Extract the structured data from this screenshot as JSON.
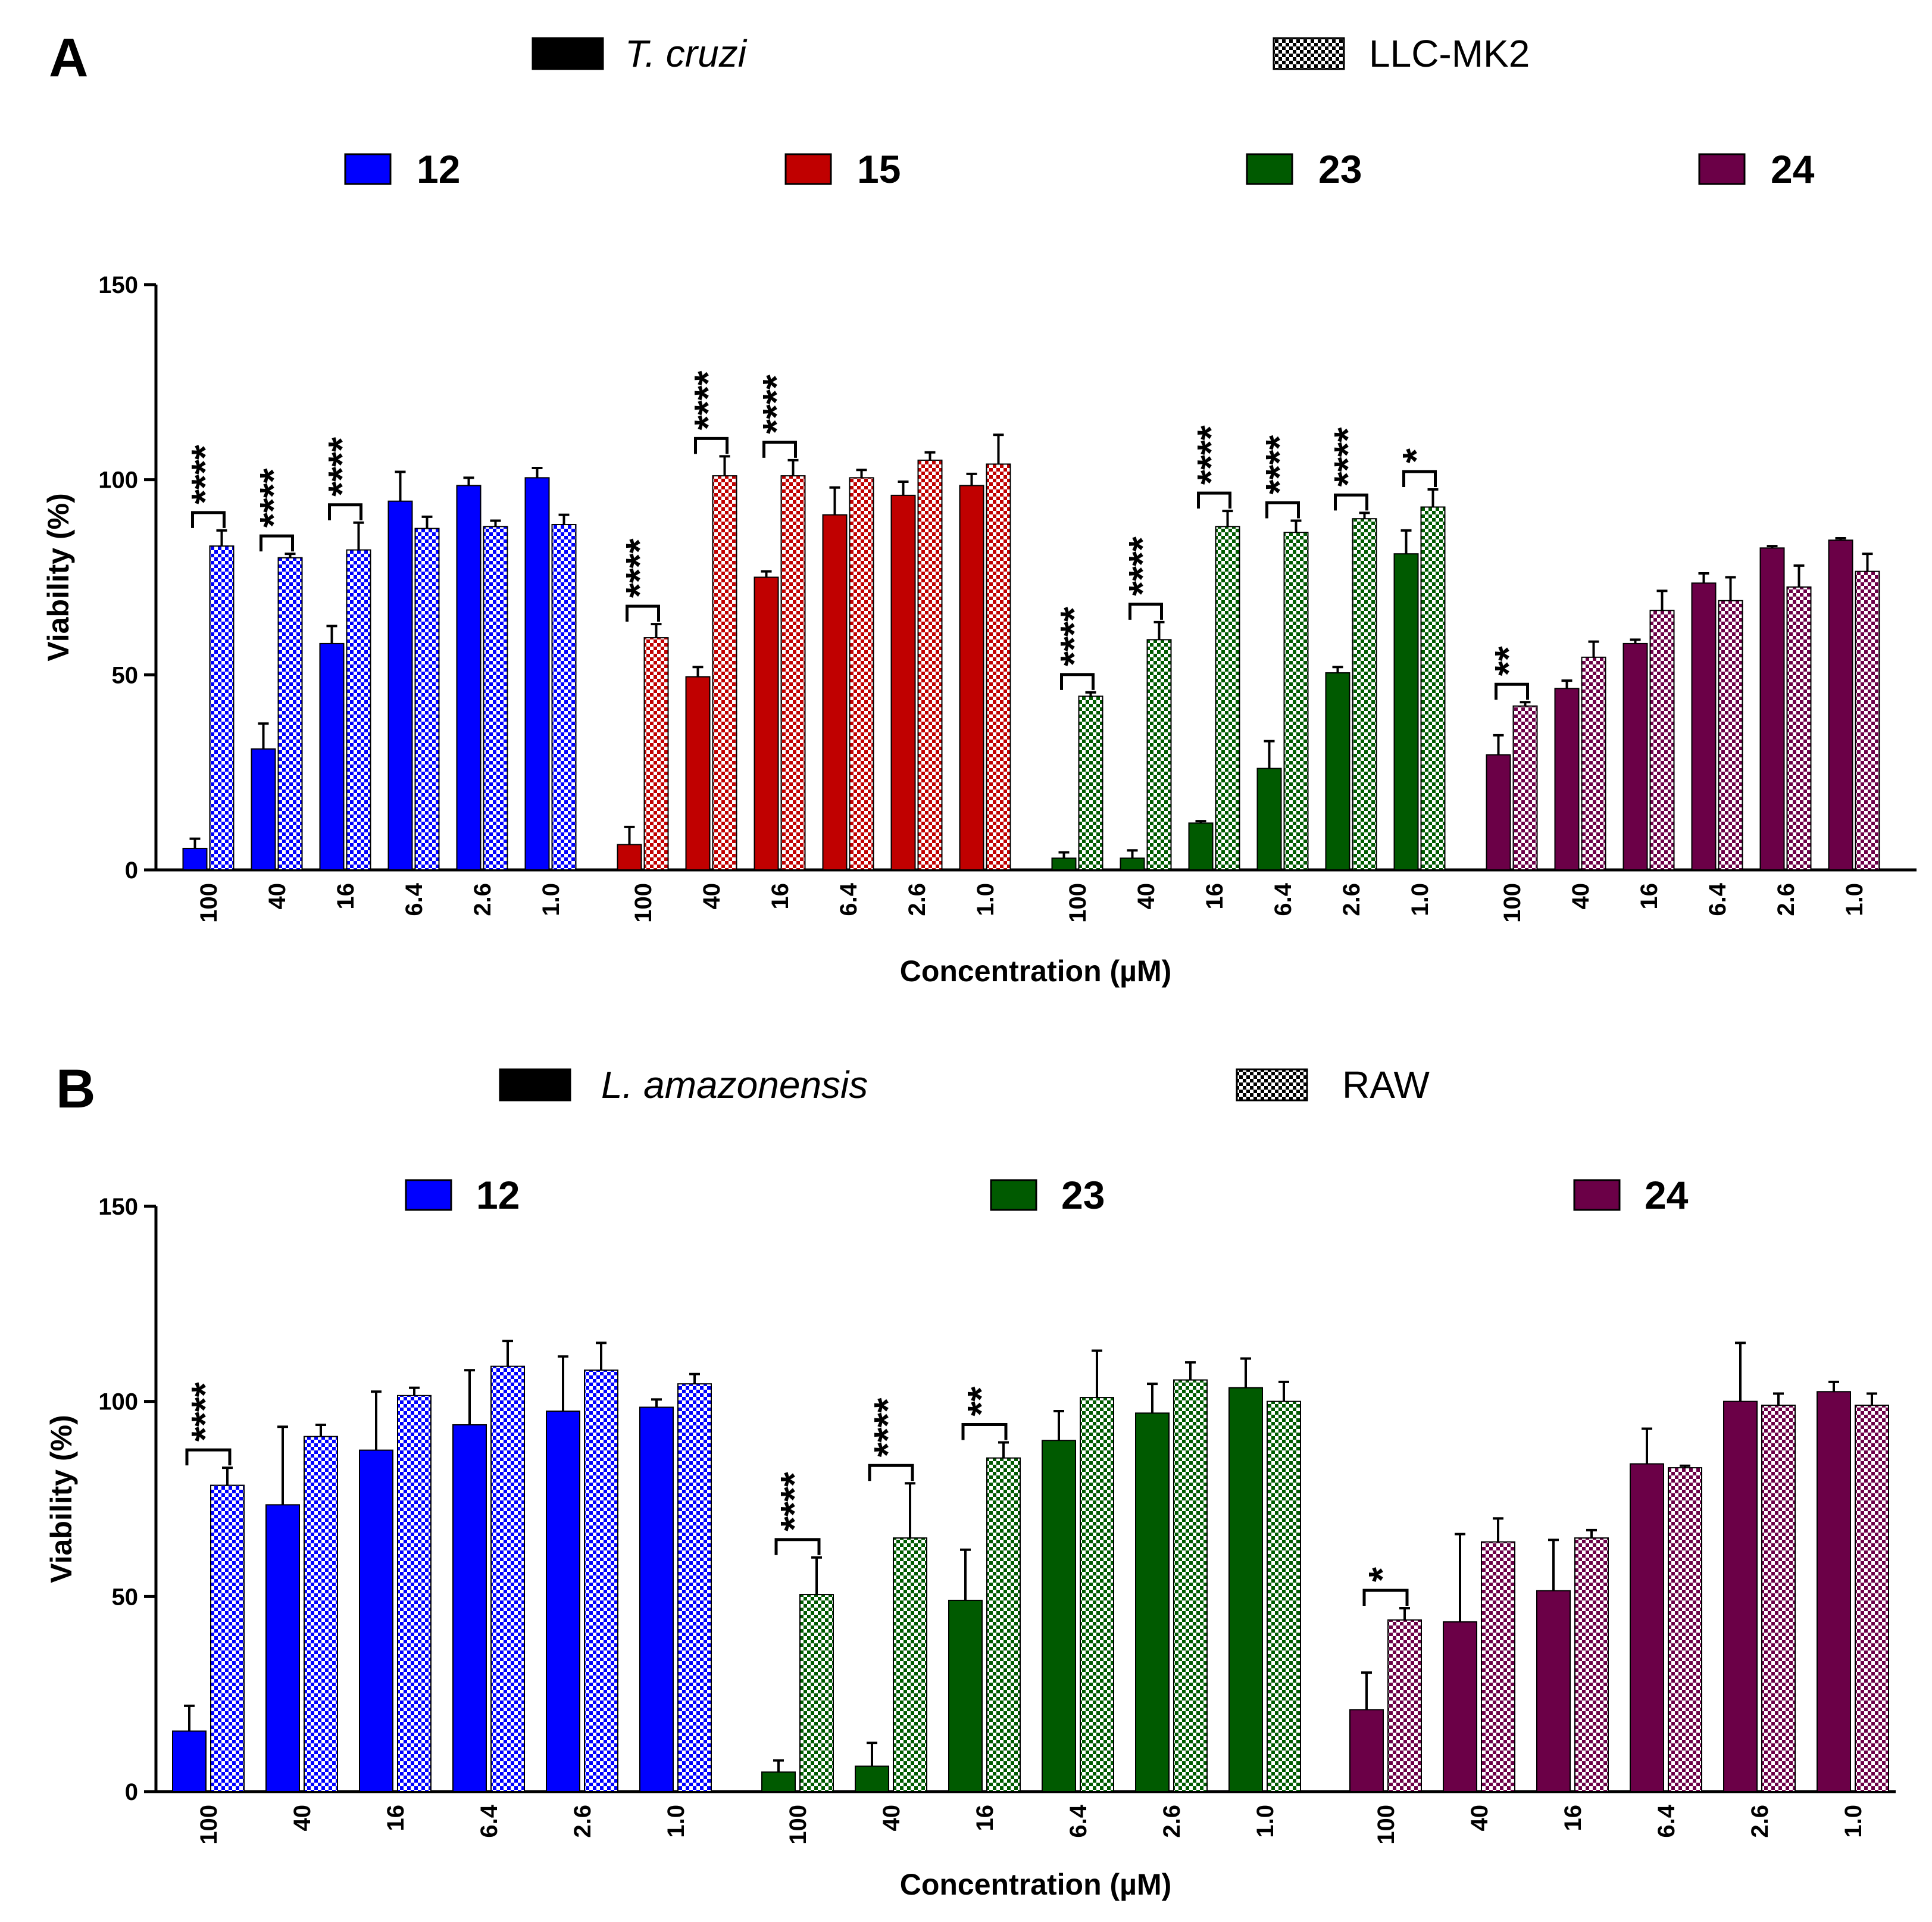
{
  "colors": {
    "c12": "#0000ff",
    "c15": "#c00000",
    "c23": "#005a00",
    "c24": "#6b0047"
  },
  "chart_data": [
    {
      "panel": "A",
      "type": "bar",
      "legend_organisms": [
        {
          "label": "T. cruzi",
          "style": "solid",
          "italic": true
        },
        {
          "label": "LLC-MK2",
          "style": "checkered",
          "italic": false
        }
      ],
      "compound_legend": [
        {
          "label": "12",
          "color": "#0000ff"
        },
        {
          "label": "15",
          "color": "#c00000"
        },
        {
          "label": "23",
          "color": "#005a00"
        },
        {
          "label": "24",
          "color": "#6b0047"
        }
      ],
      "ylabel": "Viability (%)",
      "xlabel": "Concentration (µM)",
      "ylim": [
        0,
        150
      ],
      "yticks": [
        0,
        50,
        100,
        150
      ],
      "groups": [
        {
          "compound": "12",
          "color": "#0000ff",
          "categories": [
            "100",
            "40",
            "16",
            "6.4",
            "2.6",
            "1.0"
          ],
          "parasite": [
            5.5,
            31,
            58,
            94.5,
            98.5,
            100.5
          ],
          "parasite_err": [
            2.5,
            6.5,
            4.5,
            7.5,
            2,
            2.5
          ],
          "host": [
            83,
            80,
            82,
            87.5,
            88,
            88.5
          ],
          "host_err": [
            4,
            1,
            7,
            3,
            1.5,
            2.5
          ],
          "significance": [
            "****",
            "****",
            "****",
            "",
            "",
            ""
          ]
        },
        {
          "compound": "15",
          "color": "#c00000",
          "categories": [
            "100",
            "40",
            "16",
            "6.4",
            "2.6",
            "1.0"
          ],
          "parasite": [
            6.5,
            49.5,
            75,
            91,
            96,
            98.5
          ],
          "parasite_err": [
            4.5,
            2.5,
            1.5,
            7,
            3.5,
            3
          ],
          "host": [
            59.5,
            101,
            101,
            100.5,
            105,
            104
          ],
          "host_err": [
            3.5,
            5,
            4,
            2,
            2,
            7.5
          ],
          "significance": [
            "****",
            "****",
            "****",
            "",
            "",
            ""
          ]
        },
        {
          "compound": "23",
          "color": "#005a00",
          "categories": [
            "100",
            "40",
            "16",
            "6.4",
            "2.6",
            "1.0"
          ],
          "parasite": [
            3,
            3,
            12,
            26,
            50.5,
            81
          ],
          "parasite_err": [
            1.5,
            2,
            0.5,
            7,
            1.5,
            6
          ],
          "host": [
            44.5,
            59,
            88,
            86.5,
            90,
            93
          ],
          "host_err": [
            1,
            4.5,
            4,
            3,
            1.5,
            4.5
          ],
          "significance": [
            "****",
            "****",
            "****",
            "****",
            "****",
            "*"
          ]
        },
        {
          "compound": "24",
          "color": "#6b0047",
          "categories": [
            "100",
            "40",
            "16",
            "6.4",
            "2.6",
            "1.0"
          ],
          "parasite": [
            29.5,
            46.5,
            58,
            73.5,
            82.5,
            84.5
          ],
          "parasite_err": [
            5,
            2,
            1,
            2.5,
            0.5,
            0.5
          ],
          "host": [
            42,
            54.5,
            66.5,
            69,
            72.5,
            76.5
          ],
          "host_err": [
            1,
            4,
            5,
            6,
            5.5,
            4.5
          ],
          "significance": [
            "**",
            "",
            "",
            "",
            "",
            ""
          ]
        }
      ]
    },
    {
      "panel": "B",
      "type": "bar",
      "legend_organisms": [
        {
          "label": "L. amazonensis",
          "style": "solid",
          "italic": true
        },
        {
          "label": "RAW",
          "style": "checkered",
          "italic": false
        }
      ],
      "compound_legend": [
        {
          "label": "12",
          "color": "#0000ff"
        },
        {
          "label": "23",
          "color": "#005a00"
        },
        {
          "label": "24",
          "color": "#6b0047"
        }
      ],
      "ylabel": "Viability (%)",
      "xlabel": "Concentration (µM)",
      "ylim": [
        0,
        150
      ],
      "yticks": [
        0,
        50,
        100,
        150
      ],
      "groups": [
        {
          "compound": "12",
          "color": "#0000ff",
          "categories": [
            "100",
            "40",
            "16",
            "6.4",
            "2.6",
            "1.0"
          ],
          "parasite": [
            15.5,
            73.5,
            87.5,
            94,
            97.5,
            98.5
          ],
          "parasite_err": [
            6.5,
            20,
            15,
            14,
            14,
            2
          ],
          "host": [
            78.5,
            91,
            101.5,
            109,
            108,
            104.5
          ],
          "host_err": [
            4.5,
            3,
            2,
            6.5,
            7,
            2.5
          ],
          "significance": [
            "****",
            "",
            "",
            "",
            "",
            ""
          ]
        },
        {
          "compound": "23",
          "color": "#005a00",
          "categories": [
            "100",
            "40",
            "16",
            "6.4",
            "2.6",
            "1.0"
          ],
          "parasite": [
            5,
            6.5,
            49,
            90,
            97,
            103.5
          ],
          "parasite_err": [
            3,
            6,
            13,
            7.5,
            7.5,
            7.5
          ],
          "host": [
            50.5,
            65,
            85.5,
            101,
            105.5,
            100
          ],
          "host_err": [
            9.5,
            14,
            4,
            12,
            4.5,
            5
          ],
          "significance": [
            "****",
            "****",
            "**",
            "",
            "",
            ""
          ]
        },
        {
          "compound": "24",
          "color": "#6b0047",
          "categories": [
            "100",
            "40",
            "16",
            "6.4",
            "2.6",
            "1.0"
          ],
          "parasite": [
            21,
            43.5,
            51.5,
            84,
            100,
            102.5
          ],
          "parasite_err": [
            9.5,
            22.5,
            13,
            9,
            15,
            2.5
          ],
          "host": [
            44,
            64,
            65,
            83,
            99,
            99
          ],
          "host_err": [
            3,
            6,
            2,
            0.5,
            3,
            3
          ],
          "significance": [
            "*",
            "",
            "",
            "",
            "",
            ""
          ]
        }
      ]
    }
  ]
}
